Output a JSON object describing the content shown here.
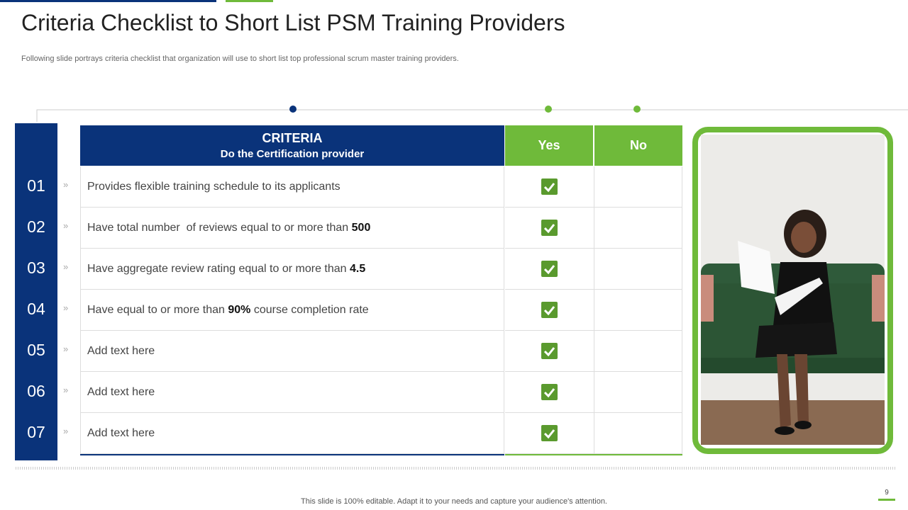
{
  "header": {
    "title": "Criteria Checklist to Short List PSM Training Providers",
    "subtitle": "Following slide portrays criteria checklist that organization will use to short list top professional scrum master training providers."
  },
  "table": {
    "criteria_title": "CRITERIA",
    "criteria_subtitle": "Do the Certification provider",
    "yes": "Yes",
    "no": "No",
    "rows": [
      {
        "number": "01",
        "parts": [
          {
            "text": "Provides flexible training schedule to its applicants",
            "bold": false
          }
        ],
        "yes": true,
        "no": false
      },
      {
        "number": "02",
        "parts": [
          {
            "text": "Have total number  of reviews equal to or more than ",
            "bold": false
          },
          {
            "text": "500",
            "bold": true
          }
        ],
        "yes": true,
        "no": false
      },
      {
        "number": "03",
        "parts": [
          {
            "text": "Have aggregate review rating equal to or more than ",
            "bold": false
          },
          {
            "text": "4.5",
            "bold": true
          }
        ],
        "yes": true,
        "no": false
      },
      {
        "number": "04",
        "parts": [
          {
            "text": "Have equal to or more than ",
            "bold": false
          },
          {
            "text": "90%",
            "bold": true
          },
          {
            "text": " course completion rate",
            "bold": false
          }
        ],
        "yes": true,
        "no": false
      },
      {
        "number": "05",
        "parts": [
          {
            "text": "Add text here",
            "bold": false
          }
        ],
        "yes": true,
        "no": false
      },
      {
        "number": "06",
        "parts": [
          {
            "text": "Add text here",
            "bold": false
          }
        ],
        "yes": true,
        "no": false
      },
      {
        "number": "07",
        "parts": [
          {
            "text": "Add text here",
            "bold": false
          }
        ],
        "yes": true,
        "no": false
      }
    ]
  },
  "footer": {
    "note": "This slide is 100% editable. Adapt it to your needs and capture your audience's attention.",
    "page": "9"
  }
}
